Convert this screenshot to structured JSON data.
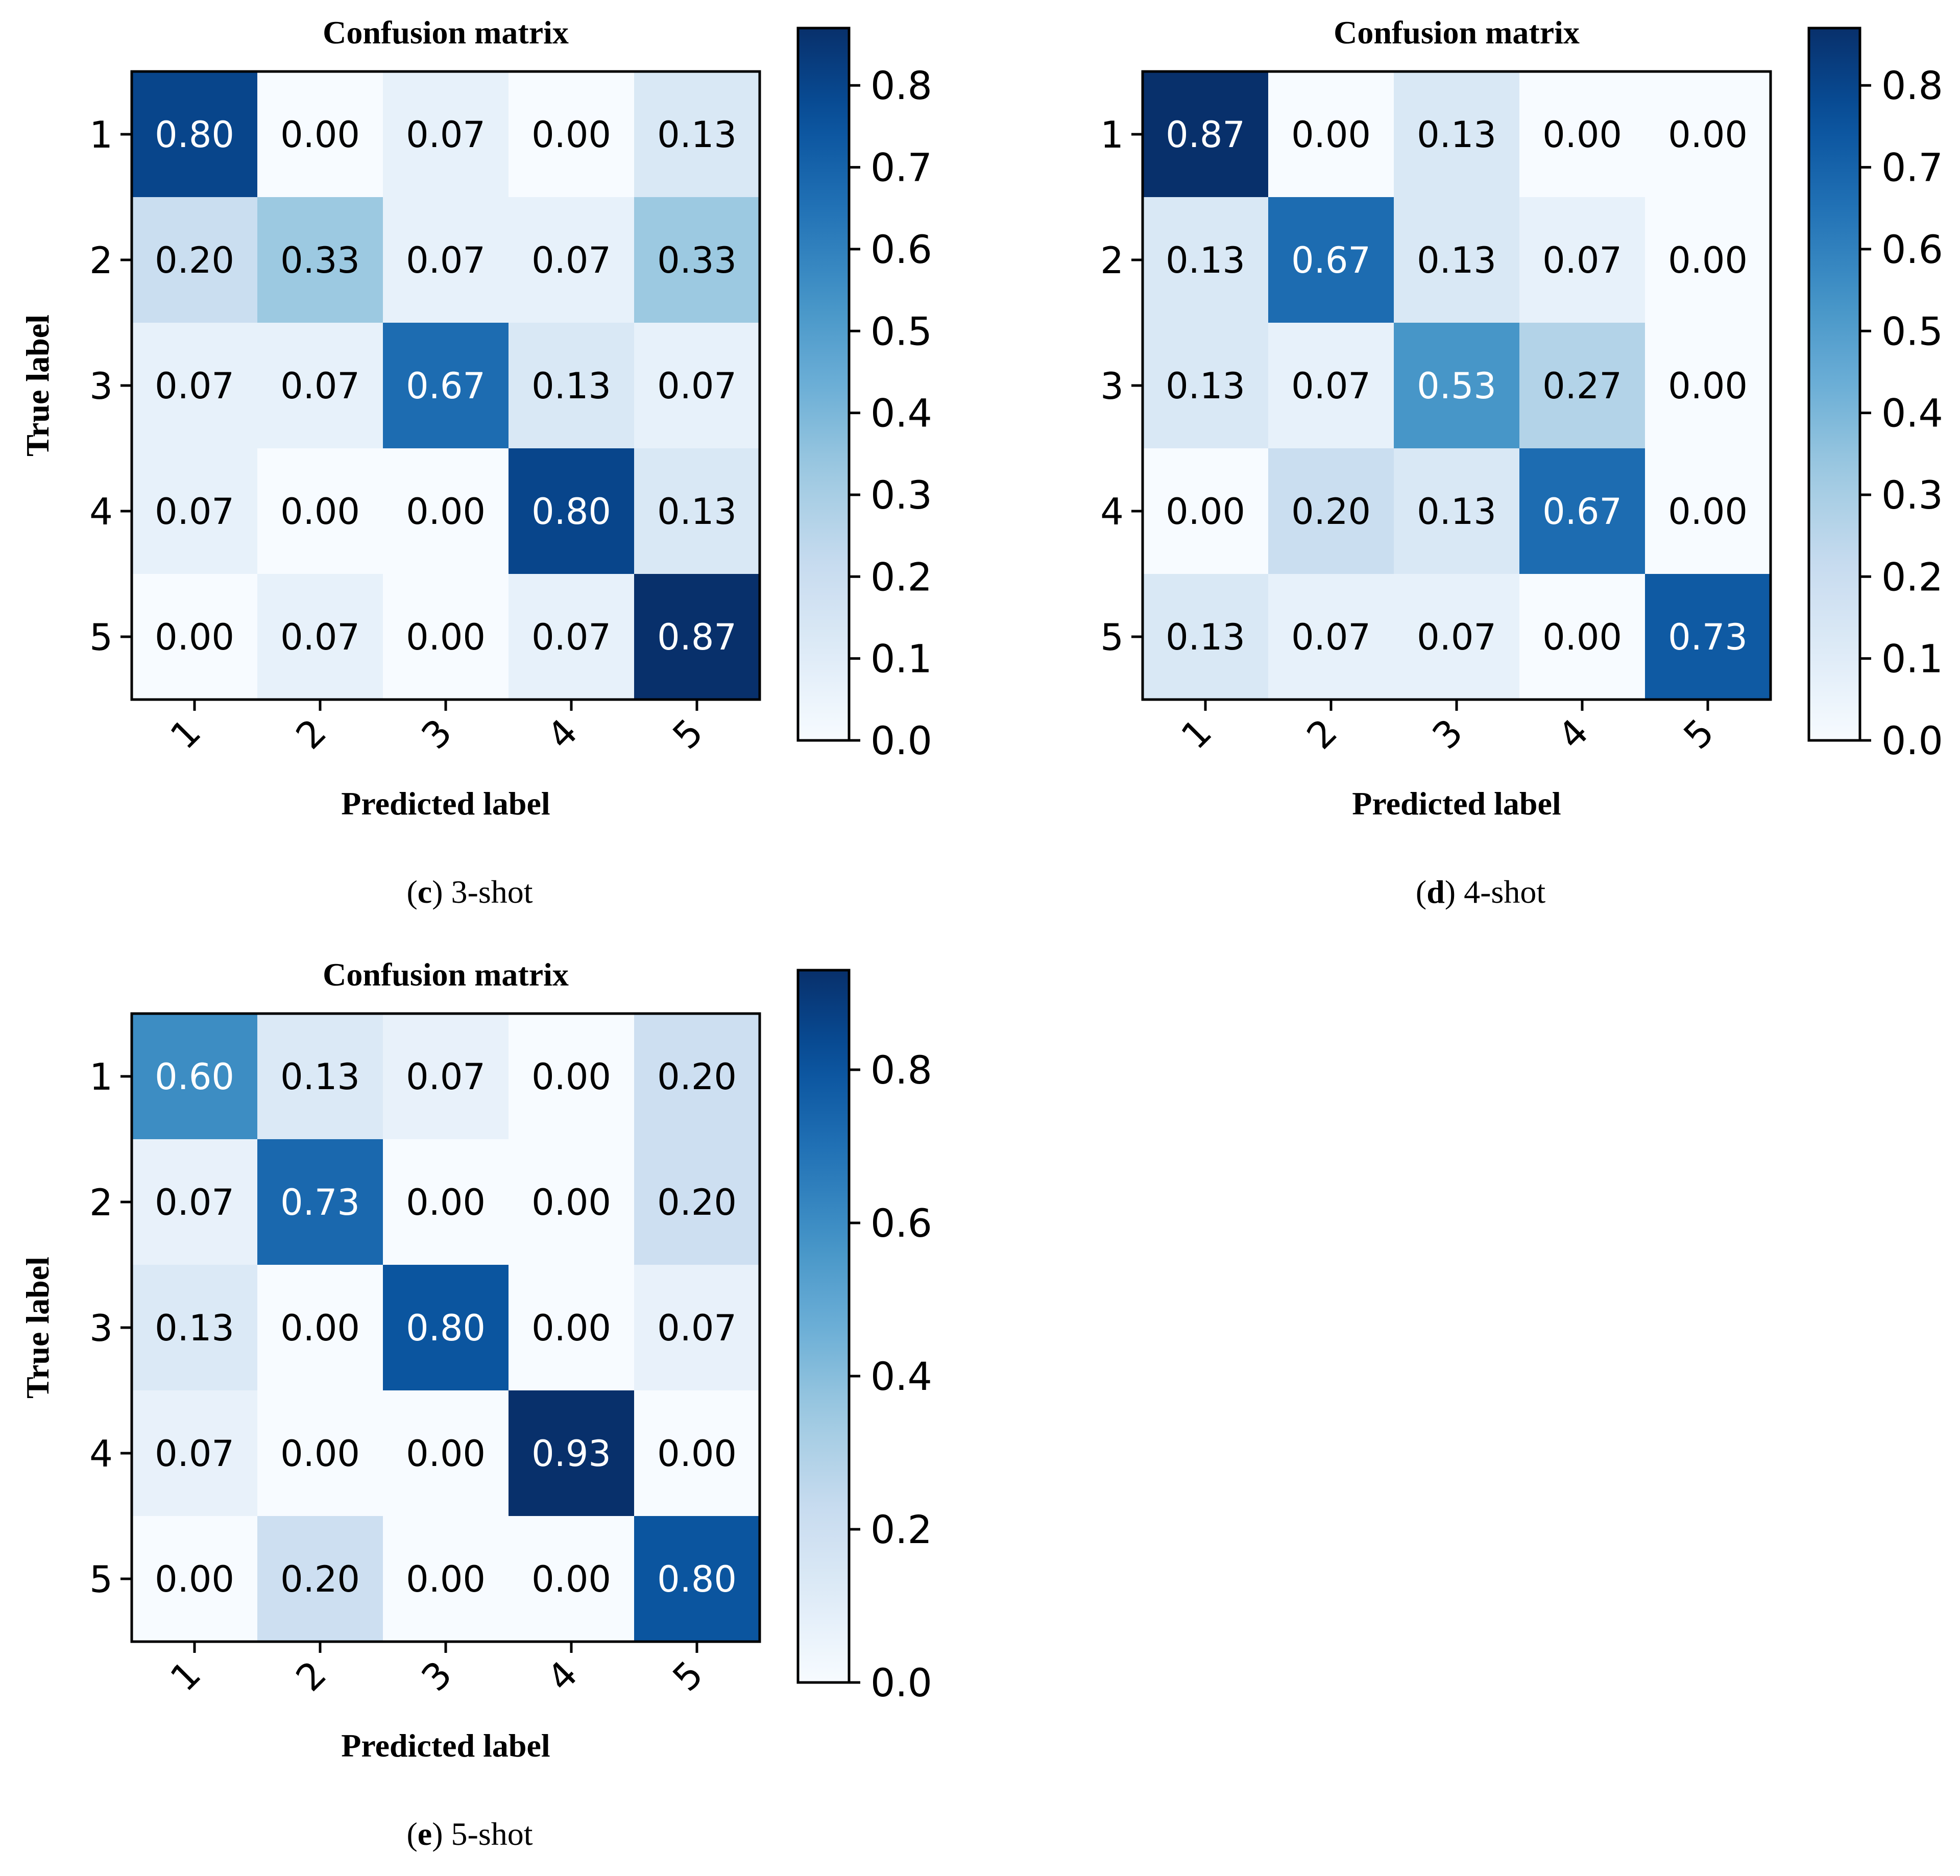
{
  "chart_data": [
    {
      "type": "heatmap",
      "panel_letter": "c",
      "caption": "3-shot",
      "title": "Confusion matrix",
      "xlabel": "Predicted label",
      "ylabel": "True label",
      "x_ticks": [
        "1",
        "2",
        "3",
        "4",
        "5"
      ],
      "y_ticks": [
        "1",
        "2",
        "3",
        "4",
        "5"
      ],
      "values": [
        [
          "0.80",
          "0.00",
          "0.07",
          "0.00",
          "0.13"
        ],
        [
          "0.20",
          "0.33",
          "0.07",
          "0.07",
          "0.33"
        ],
        [
          "0.07",
          "0.07",
          "0.67",
          "0.13",
          "0.07"
        ],
        [
          "0.07",
          "0.00",
          "0.00",
          "0.80",
          "0.13"
        ],
        [
          "0.00",
          "0.07",
          "0.00",
          "0.07",
          "0.87"
        ]
      ],
      "colormap": "Blues",
      "vmax": 0.87,
      "colorbar_ticks": [
        "0.0",
        "0.1",
        "0.2",
        "0.3",
        "0.4",
        "0.5",
        "0.6",
        "0.7",
        "0.8"
      ]
    },
    {
      "type": "heatmap",
      "panel_letter": "d",
      "caption": "4-shot",
      "title": "Confusion matrix",
      "xlabel": "Predicted label",
      "ylabel": "True label",
      "x_ticks": [
        "1",
        "2",
        "3",
        "4",
        "5"
      ],
      "y_ticks": [
        "1",
        "2",
        "3",
        "4",
        "5"
      ],
      "values": [
        [
          "0.87",
          "0.00",
          "0.13",
          "0.00",
          "0.00"
        ],
        [
          "0.13",
          "0.67",
          "0.13",
          "0.07",
          "0.00"
        ],
        [
          "0.13",
          "0.07",
          "0.53",
          "0.27",
          "0.00"
        ],
        [
          "0.00",
          "0.20",
          "0.13",
          "0.67",
          "0.00"
        ],
        [
          "0.13",
          "0.07",
          "0.07",
          "0.00",
          "0.73"
        ]
      ],
      "colormap": "Blues",
      "vmax": 0.87,
      "colorbar_ticks": [
        "0.0",
        "0.1",
        "0.2",
        "0.3",
        "0.4",
        "0.5",
        "0.6",
        "0.7",
        "0.8"
      ]
    },
    {
      "type": "heatmap",
      "panel_letter": "e",
      "caption": "5-shot",
      "title": "Confusion matrix",
      "xlabel": "Predicted label",
      "ylabel": "True label",
      "x_ticks": [
        "1",
        "2",
        "3",
        "4",
        "5"
      ],
      "y_ticks": [
        "1",
        "2",
        "3",
        "4",
        "5"
      ],
      "values": [
        [
          "0.60",
          "0.13",
          "0.07",
          "0.00",
          "0.20"
        ],
        [
          "0.07",
          "0.73",
          "0.00",
          "0.00",
          "0.20"
        ],
        [
          "0.13",
          "0.00",
          "0.80",
          "0.00",
          "0.07"
        ],
        [
          "0.07",
          "0.00",
          "0.00",
          "0.93",
          "0.00"
        ],
        [
          "0.00",
          "0.20",
          "0.00",
          "0.00",
          "0.80"
        ]
      ],
      "colormap": "Blues",
      "vmax": 0.93,
      "colorbar_ticks": [
        "0.0",
        "0.2",
        "0.4",
        "0.6",
        "0.8"
      ]
    }
  ],
  "colors": {
    "cmap_low": "#f7fbff",
    "cmap_high": "#08306b",
    "text_dark": "#000000",
    "text_light": "#ffffff"
  }
}
